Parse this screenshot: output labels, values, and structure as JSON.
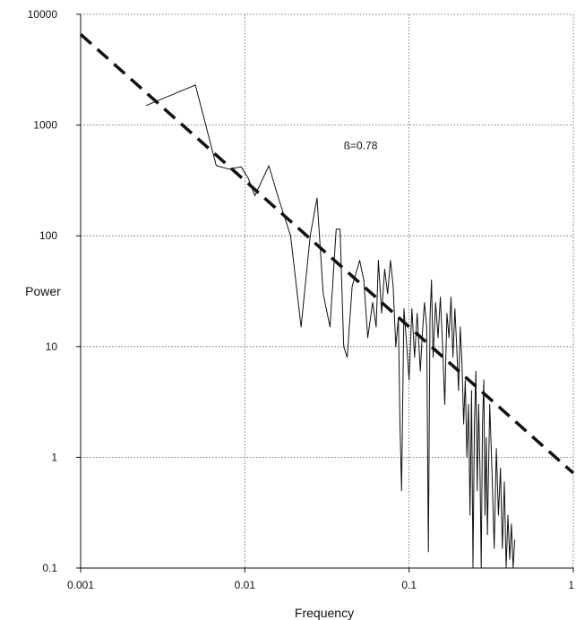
{
  "chart_data": {
    "type": "line",
    "title": "",
    "xlabel": "Frequency",
    "ylabel": "Power",
    "x_scale": "log",
    "y_scale": "log",
    "xlim": [
      0.001,
      1
    ],
    "ylim": [
      0.1,
      10000
    ],
    "grid": true,
    "x_ticks": [
      {
        "value": 0.001,
        "label": "0.001"
      },
      {
        "value": 0.01,
        "label": "0.01"
      },
      {
        "value": 0.1,
        "label": "0.1"
      },
      {
        "value": 1,
        "label": "1"
      }
    ],
    "y_ticks": [
      {
        "value": 0.1,
        "label": "0.1"
      },
      {
        "value": 1,
        "label": "1"
      },
      {
        "value": 10,
        "label": "10"
      },
      {
        "value": 100,
        "label": "100"
      },
      {
        "value": 1000,
        "label": "1000"
      },
      {
        "value": 10000,
        "label": "10000"
      }
    ],
    "annotation": {
      "text": "ß=0.78",
      "x": 0.04,
      "y": 650
    },
    "series": [
      {
        "style": "thin-solid",
        "color": "#111111",
        "points": [
          [
            0.0025,
            1500
          ],
          [
            0.005,
            2300
          ],
          [
            0.0067,
            430
          ],
          [
            0.008,
            400
          ],
          [
            0.0095,
            420
          ],
          [
            0.0105,
            330
          ],
          [
            0.0115,
            230
          ],
          [
            0.014,
            430
          ],
          [
            0.016,
            220
          ],
          [
            0.019,
            100
          ],
          [
            0.022,
            15
          ],
          [
            0.025,
            100
          ],
          [
            0.0275,
            220
          ],
          [
            0.03,
            30
          ],
          [
            0.033,
            15
          ],
          [
            0.036,
            115
          ],
          [
            0.038,
            115
          ],
          [
            0.04,
            10
          ],
          [
            0.042,
            8
          ],
          [
            0.045,
            35
          ],
          [
            0.05,
            60
          ],
          [
            0.053,
            40
          ],
          [
            0.056,
            12
          ],
          [
            0.06,
            25
          ],
          [
            0.063,
            15
          ],
          [
            0.065,
            60
          ],
          [
            0.068,
            20
          ],
          [
            0.071,
            50
          ],
          [
            0.074,
            30
          ],
          [
            0.077,
            60
          ],
          [
            0.08,
            35
          ],
          [
            0.083,
            10
          ],
          [
            0.086,
            18
          ],
          [
            0.088,
            2
          ],
          [
            0.09,
            0.5
          ],
          [
            0.093,
            22
          ],
          [
            0.096,
            12
          ],
          [
            0.1,
            5
          ],
          [
            0.104,
            22
          ],
          [
            0.108,
            8
          ],
          [
            0.112,
            20
          ],
          [
            0.117,
            6
          ],
          [
            0.12,
            12
          ],
          [
            0.124,
            25
          ],
          [
            0.128,
            15
          ],
          [
            0.131,
            0.14
          ],
          [
            0.134,
            18
          ],
          [
            0.137,
            40
          ],
          [
            0.14,
            8
          ],
          [
            0.145,
            25
          ],
          [
            0.15,
            12
          ],
          [
            0.155,
            28
          ],
          [
            0.16,
            10
          ],
          [
            0.165,
            3
          ],
          [
            0.17,
            20
          ],
          [
            0.175,
            12
          ],
          [
            0.18,
            28
          ],
          [
            0.185,
            8
          ],
          [
            0.19,
            22
          ],
          [
            0.195,
            10
          ],
          [
            0.2,
            4
          ],
          [
            0.205,
            15
          ],
          [
            0.21,
            7
          ],
          [
            0.215,
            2
          ],
          [
            0.22,
            5
          ],
          [
            0.225,
            1
          ],
          [
            0.23,
            3
          ],
          [
            0.235,
            0.3
          ],
          [
            0.24,
            4
          ],
          [
            0.245,
            0.1
          ],
          [
            0.25,
            2
          ],
          [
            0.255,
            6
          ],
          [
            0.26,
            0.5
          ],
          [
            0.265,
            3
          ],
          [
            0.27,
            0.8
          ],
          [
            0.275,
            0.1
          ],
          [
            0.28,
            2
          ],
          [
            0.285,
            5
          ],
          [
            0.29,
            0.3
          ],
          [
            0.295,
            1.5
          ],
          [
            0.3,
            0.2
          ],
          [
            0.31,
            3
          ],
          [
            0.32,
            0.7
          ],
          [
            0.33,
            0.15
          ],
          [
            0.34,
            1.2
          ],
          [
            0.35,
            0.3
          ],
          [
            0.36,
            0.8
          ],
          [
            0.37,
            0.15
          ],
          [
            0.38,
            0.6
          ],
          [
            0.39,
            0.1
          ],
          [
            0.4,
            0.3
          ],
          [
            0.41,
            0.12
          ],
          [
            0.42,
            0.25
          ],
          [
            0.43,
            0.1
          ],
          [
            0.44,
            0.18
          ]
        ]
      },
      {
        "style": "dashed-fit",
        "color": "#111111",
        "points": [
          [
            0.001,
            6600
          ],
          [
            1,
            0.72
          ]
        ]
      }
    ]
  }
}
